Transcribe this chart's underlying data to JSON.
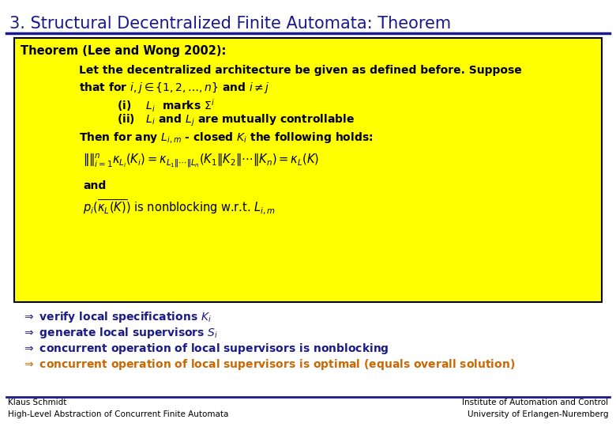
{
  "title": "3. Structural Decentralized Finite Automata: Theorem",
  "title_color": "#1a1a8c",
  "title_fontsize": 15,
  "title_line_color": "#1a1a8c",
  "bg_color": "#ffffff",
  "box_bg_color": "#ffff00",
  "box_border_color": "#000000",
  "theorem_header": "Theorem (Lee and Wong 2002):",
  "footer_left_1": "Klaus Schmidt",
  "footer_left_2": "High-Level Abstraction of Concurrent Finite Automata",
  "footer_right_1": "Institute of Automation and Control",
  "footer_right_2": "University of Erlangen-Nuremberg",
  "footer_color": "#000000",
  "footer_line_color": "#1a1a8c",
  "bullet_color": "#1a1a8c",
  "orange_color": "#cc6600",
  "box_text_color": "#000000",
  "box_text_bold_color": "#000080"
}
